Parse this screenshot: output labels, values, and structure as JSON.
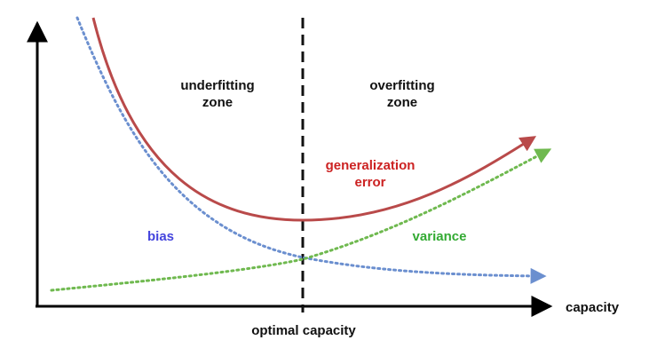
{
  "labels": {
    "underfitting_line1": "underfitting",
    "underfitting_line2": "zone",
    "overfitting_line1": "overfitting",
    "overfitting_line2": "zone",
    "generalization_line1": "generalization",
    "generalization_line2": "error",
    "bias": "bias",
    "variance": "variance",
    "x_axis": "capacity",
    "optimal": "optimal capacity"
  },
  "colors": {
    "axis": "#000000",
    "generalization_error": "#b94a4a",
    "bias": "#6b8fcf",
    "variance": "#6fb94f",
    "bias_label": "#4444dd",
    "variance_label": "#33aa33",
    "generalization_label": "#cc2222",
    "zone_label": "#111111"
  }
}
